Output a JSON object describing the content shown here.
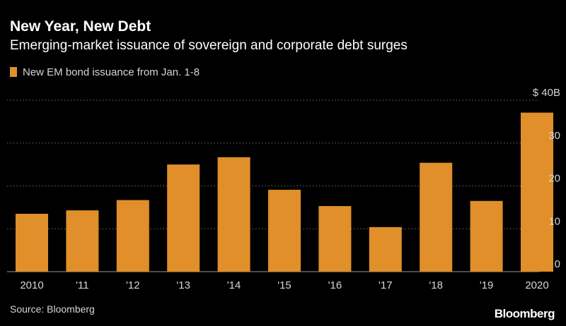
{
  "header": {
    "title": "New Year, New Debt",
    "subtitle": "Emerging-market issuance of sovereign and corporate debt surges"
  },
  "footer": {
    "source": "Source: Bloomberg",
    "brand": "Bloomberg"
  },
  "colors": {
    "bar": "#e08f2a",
    "background": "#000000",
    "grid": "#6e6e6e",
    "tick_label": "#d6d6d6"
  },
  "chart_data": {
    "type": "bar",
    "title": "New Year, New Debt",
    "subtitle": "Emerging-market issuance of sovereign and corporate debt surges",
    "categories": [
      "2010",
      "'11",
      "'12",
      "'13",
      "'14",
      "'15",
      "'16",
      "'17",
      "'18",
      "'19",
      "2020"
    ],
    "series": [
      {
        "name": "New EM bond issuance from Jan. 1-8",
        "values": [
          13.5,
          14.3,
          16.7,
          25.0,
          26.7,
          19.1,
          15.3,
          10.4,
          25.4,
          16.5,
          37.1
        ]
      }
    ],
    "y_ticks": [
      0,
      10,
      20,
      30,
      40
    ],
    "y_tick_labels": [
      "0",
      "10",
      "20",
      "30",
      "$ 40B"
    ],
    "ylim": [
      0,
      40
    ],
    "y_axis_side": "right",
    "grid": "horizontal dotted",
    "legend_position": "top-left"
  }
}
